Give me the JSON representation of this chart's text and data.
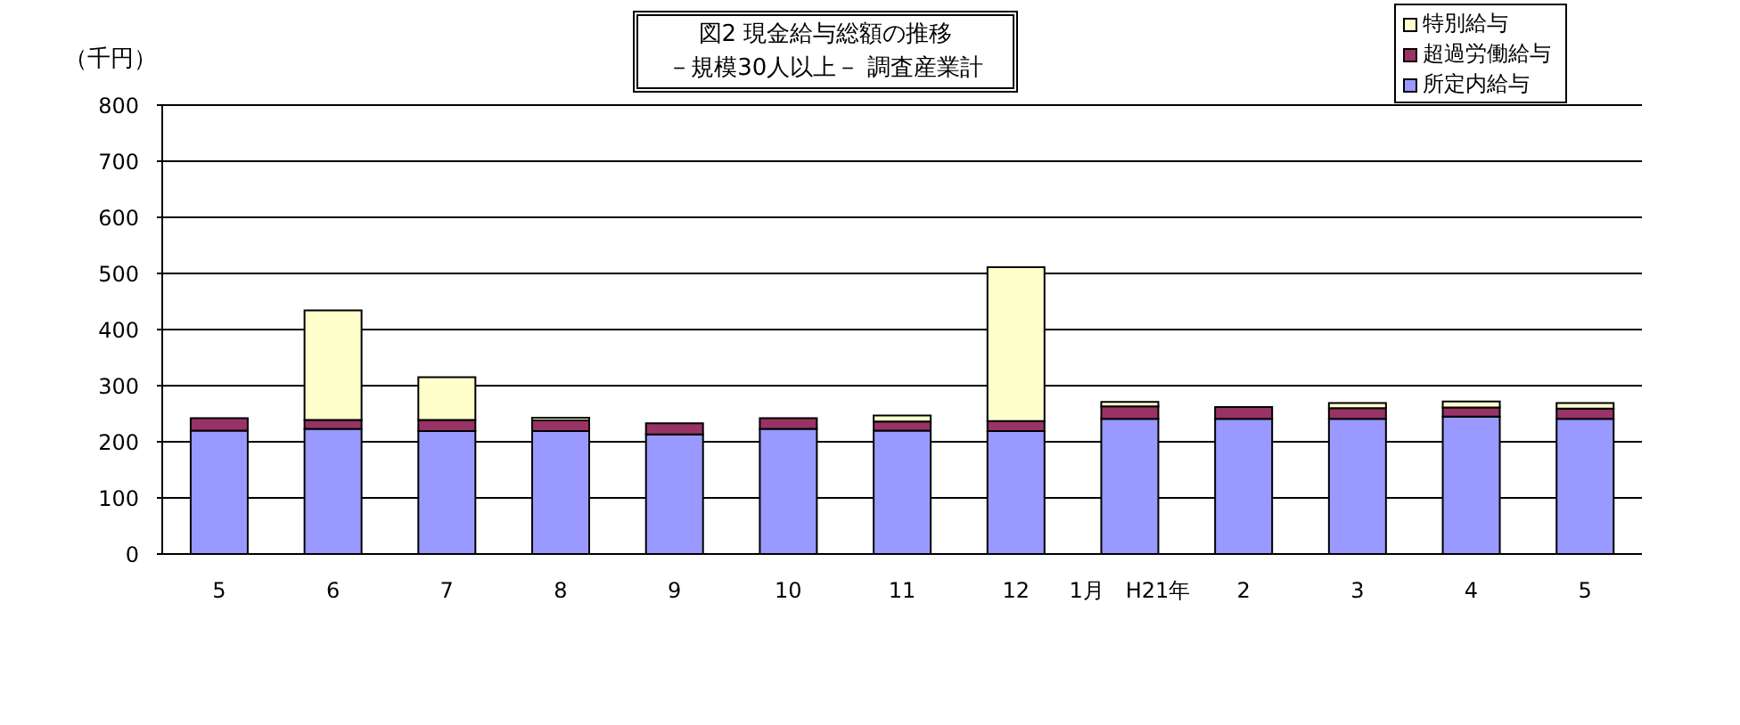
{
  "chart_data": {
    "type": "bar",
    "title": "図2 現金給与総額の推移",
    "subtitle": "－規模30人以上－ 調査産業計",
    "ylabel": "（千円）",
    "categories": [
      "5",
      "6",
      "7",
      "8",
      "9",
      "10",
      "11",
      "12",
      "1月　H21年",
      "2",
      "3",
      "4",
      "5"
    ],
    "series": [
      {
        "name": "所定内給与",
        "color": "#9999ff",
        "values": [
          220,
          223,
          219,
          219,
          213,
          223,
          220,
          219,
          241,
          241,
          241,
          245,
          241
        ]
      },
      {
        "name": "超過労働給与",
        "color": "#993366",
        "values": [
          22,
          16,
          20,
          19,
          20,
          19,
          16,
          18,
          22,
          21,
          19,
          16,
          18
        ]
      },
      {
        "name": "特別給与",
        "color": "#ffffcc",
        "values": [
          0,
          195,
          76,
          5,
          0,
          0,
          11,
          274,
          8,
          0,
          9,
          11,
          10
        ]
      }
    ],
    "stacked": true,
    "ylim": [
      0,
      800
    ],
    "yticks": [
      0,
      100,
      200,
      300,
      400,
      500,
      600,
      700,
      800
    ],
    "grid": "y",
    "legend": "top right"
  }
}
